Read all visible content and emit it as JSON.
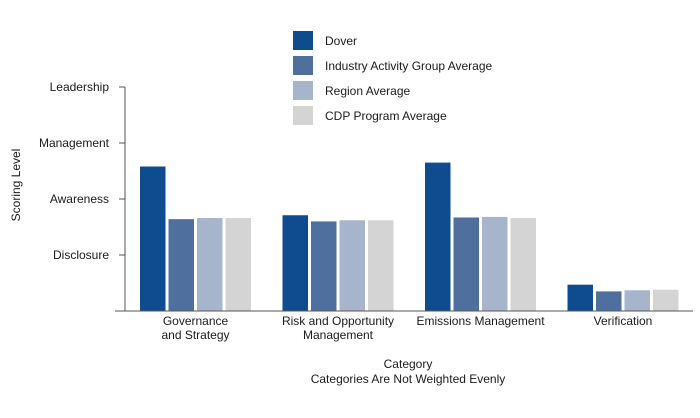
{
  "chart_data": {
    "type": "bar",
    "title": "",
    "xlabel": "Category",
    "xlabel_subtitle": "Categories Are Not Weighted Evenly",
    "ylabel": "Scoring Level",
    "y_ticks": [
      "Disclosure",
      "Awareness",
      "Management",
      "Leadership"
    ],
    "ylim": [
      0,
      4
    ],
    "grid": false,
    "legend_position": "top",
    "categories": [
      [
        "Governance",
        "and Strategy"
      ],
      [
        "Risk and Opportunity",
        "Management"
      ],
      [
        "Emissions Management"
      ],
      [
        "Verification"
      ]
    ],
    "series": [
      {
        "name": "Dover",
        "color": "#0f4c8f",
        "values": [
          2.58,
          1.71,
          2.65,
          0.47
        ]
      },
      {
        "name": "Industry Activity Group Average",
        "color": "#4f6f9f",
        "values": [
          1.64,
          1.6,
          1.67,
          0.35
        ]
      },
      {
        "name": "Region Average",
        "color": "#a6b4cc",
        "values": [
          1.66,
          1.62,
          1.68,
          0.37
        ]
      },
      {
        "name": "CDP Program Average",
        "color": "#d4d4d4",
        "values": [
          1.66,
          1.62,
          1.66,
          0.38
        ]
      }
    ]
  }
}
